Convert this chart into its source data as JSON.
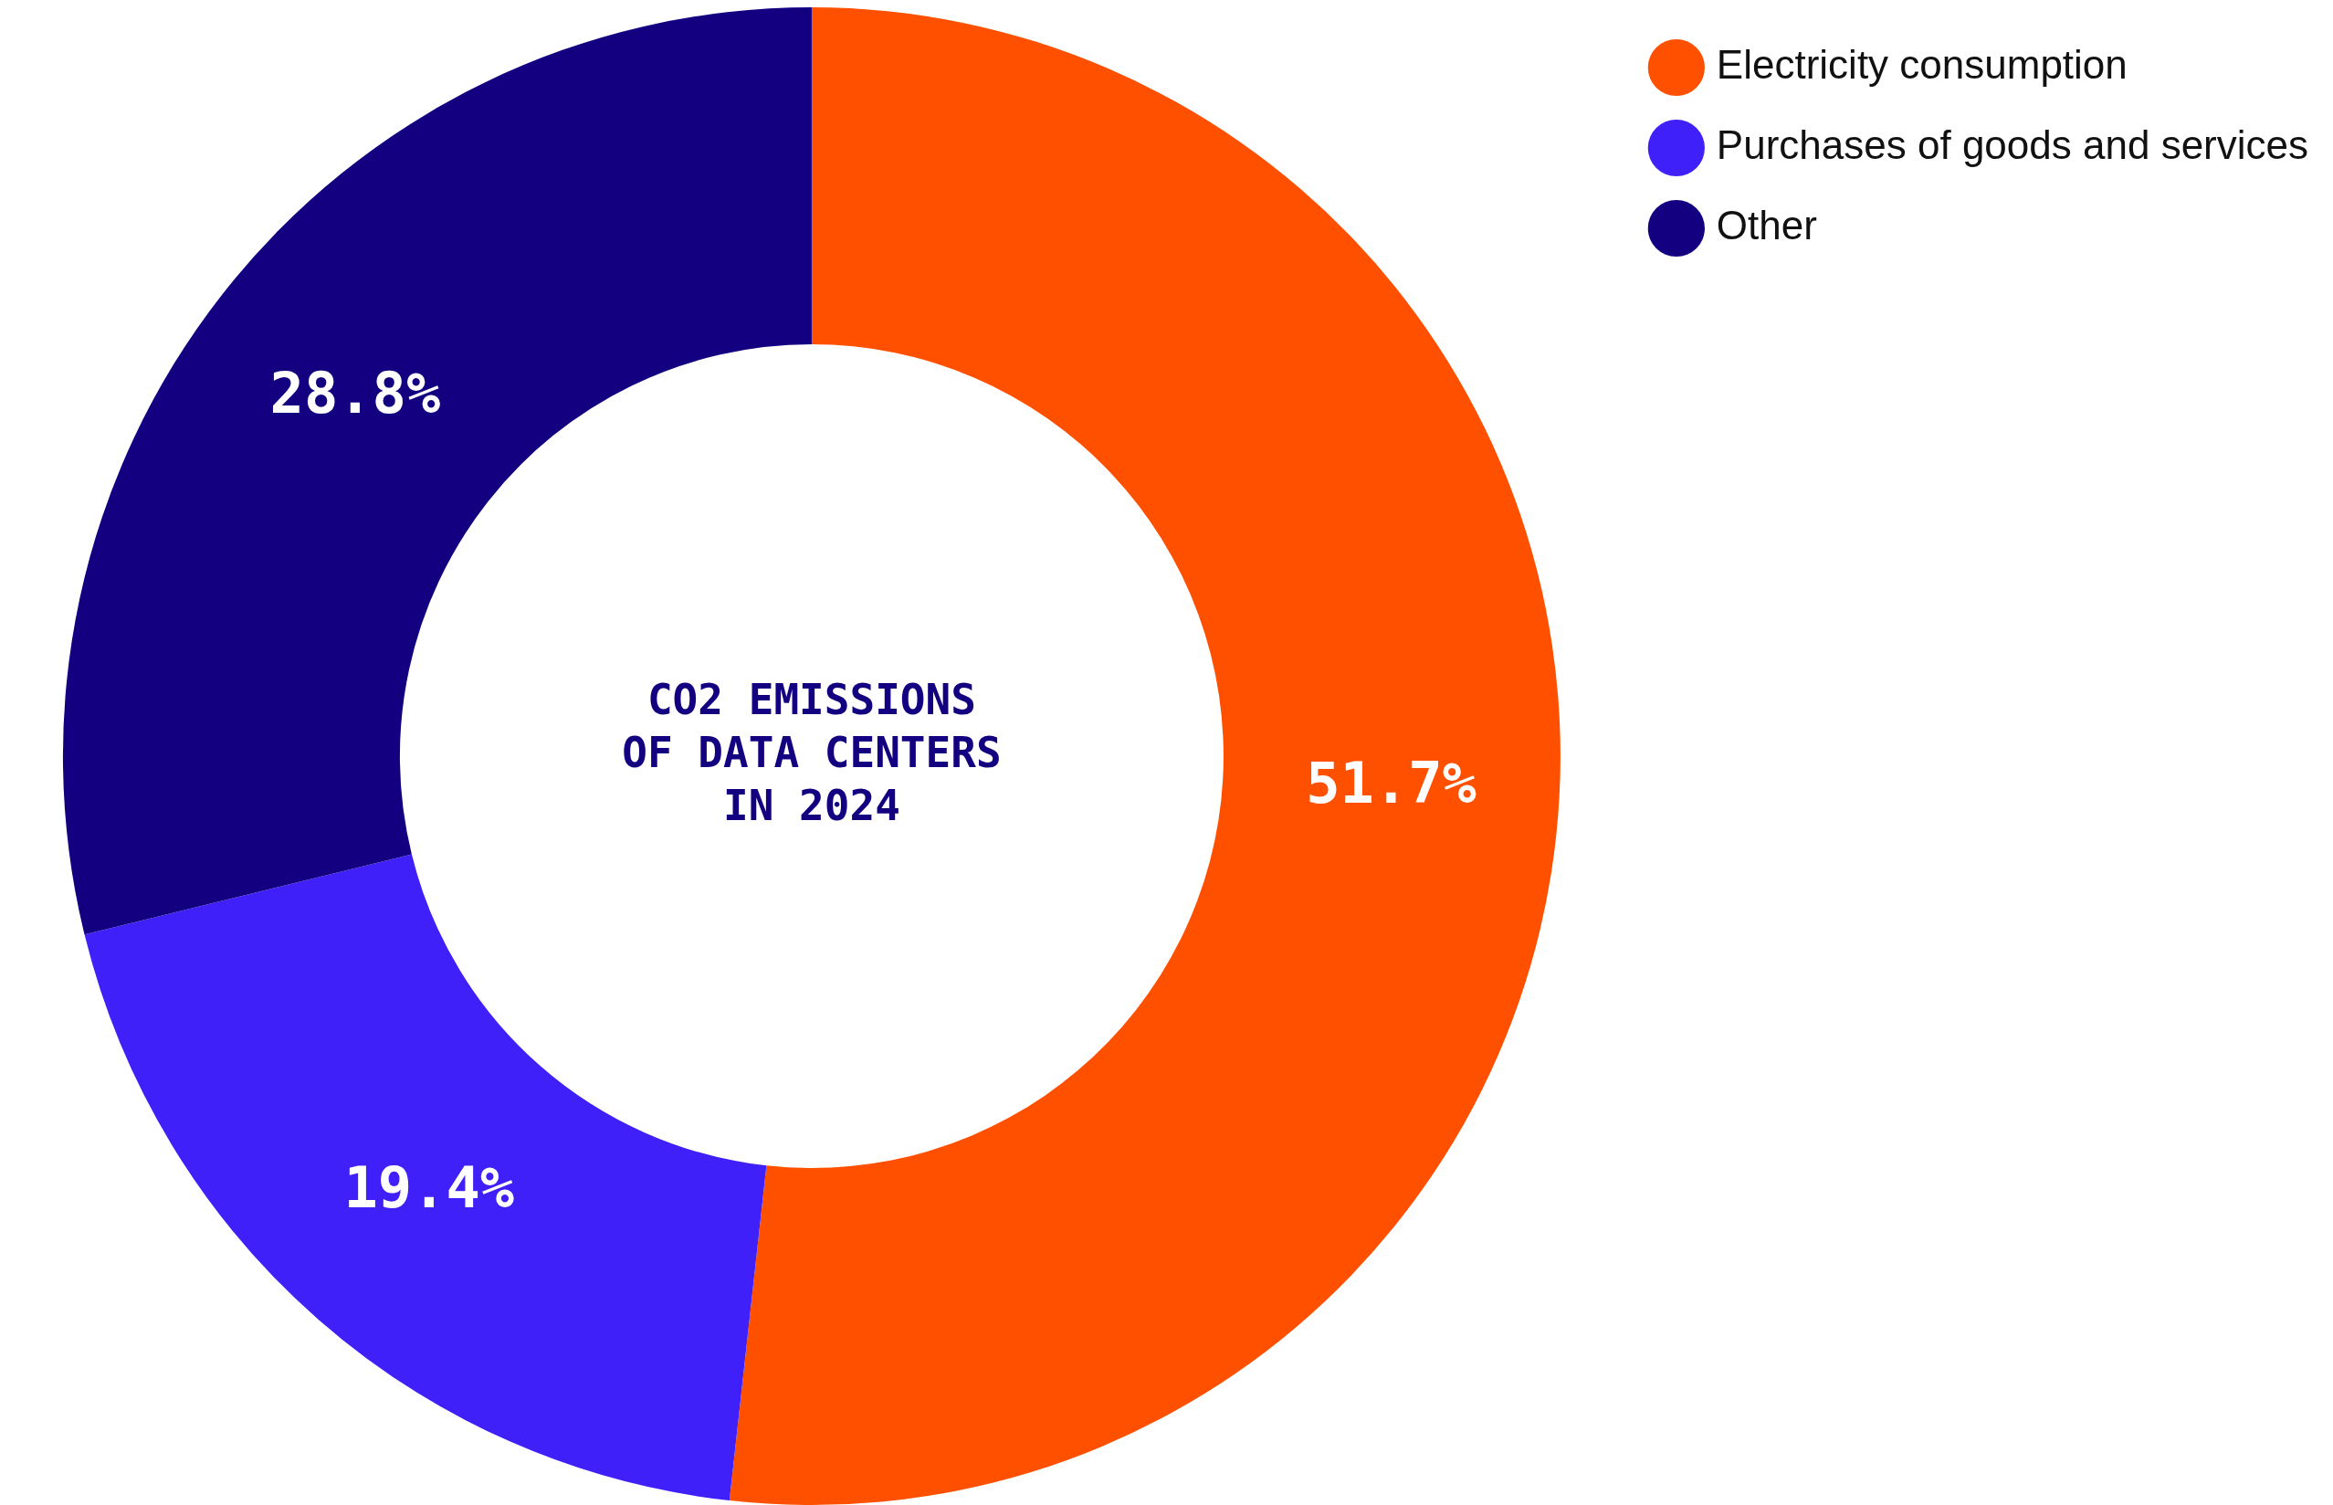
{
  "chart_data": {
    "type": "donut",
    "title": "CO2 EMISSIONS OF DATA CENTERS IN 2024",
    "categories": [
      "Electricity consumption",
      "Purchases of goods and services",
      "Other"
    ],
    "values": [
      51.7,
      19.4,
      28.8
    ],
    "colors": [
      "#ff5000",
      "#4020f8",
      "#130080"
    ],
    "value_labels": [
      "51.7%",
      "19.4%",
      "28.8%"
    ],
    "legend": "top right"
  }
}
